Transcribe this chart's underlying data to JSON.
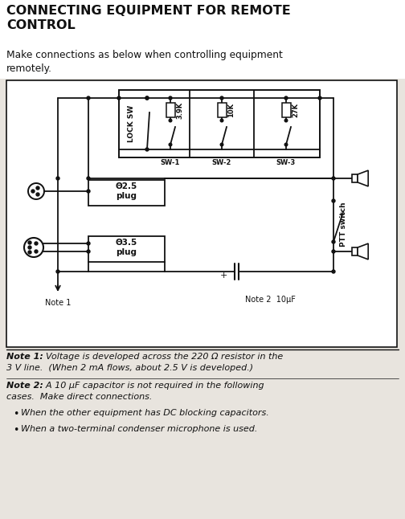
{
  "title": "CONNECTING EQUIPMENT FOR REMOTE\nCONTROL",
  "subtitle": "Make connections as below when controlling equipment\nremotely.",
  "bg_color": "#e8e4de",
  "diagram_bg": "#ffffff",
  "note1_bold": "Note 1:",
  "note1_text": "  Voltage is developed across the 220 Ω resistor in the\n3 V line.  (When 2 mA flows, about 2.5 V is developed.)",
  "note2_bold": "Note 2:",
  "note2_text": "  A 10 μF capacitor is not required in the following\ncases.  Make direct connections.",
  "bullet1": "When the other equipment has DC blocking capacitors.",
  "bullet2": "When a two-terminal condenser microphone is used.",
  "lock_sw_label": "LOCK SW",
  "sw1_label": "SW-1",
  "sw2_label": "SW-2",
  "sw3_label": "SW-3",
  "r1_label": "3.9K",
  "r2_label": "10K",
  "r3_label": "27K",
  "plug25_label": "Θ2.5\nplug",
  "plug35_label": "Θ3.5\nplug",
  "ptt_label": "PTT switch",
  "note1_arrow": "Note 1",
  "note2_cap": "Note 2  10μF"
}
